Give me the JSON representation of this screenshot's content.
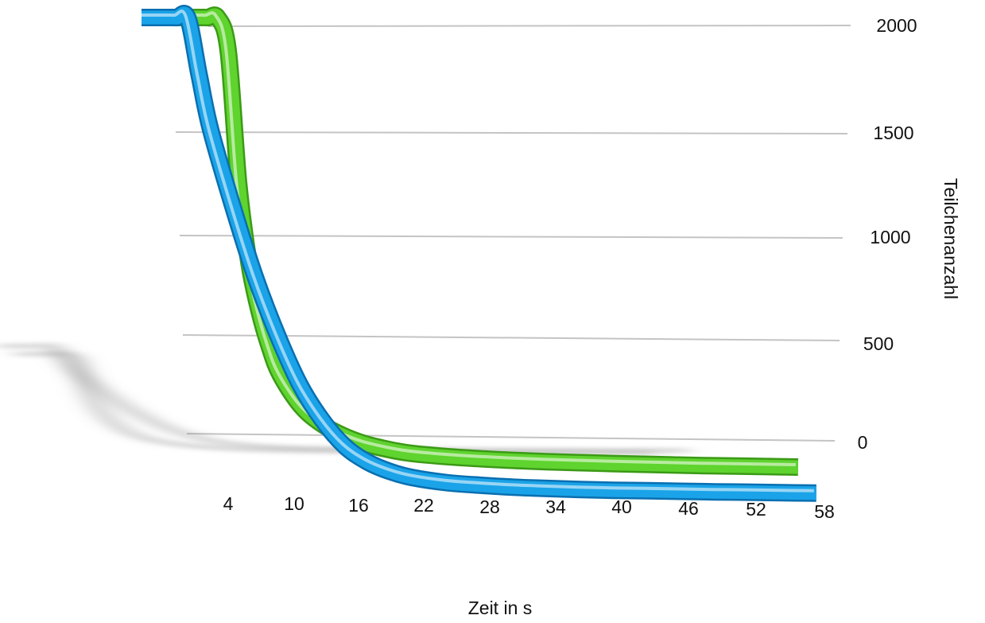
{
  "chart_data": {
    "type": "line",
    "title": "",
    "xlabel": "Zeit in s",
    "ylabel": "Teilchenanzahl",
    "x_ticks": [
      "4",
      "10",
      "16",
      "22",
      "28",
      "34",
      "40",
      "46",
      "52",
      "58"
    ],
    "y_ticks": [
      "2000",
      "1500",
      "1000",
      "500",
      "0"
    ],
    "ylim": [
      0,
      2000
    ],
    "xlim": [
      0,
      60
    ],
    "grid": true,
    "series": [
      {
        "color": "#5fd32e",
        "x": [
          0,
          1,
          2,
          3,
          4,
          5,
          6,
          7,
          8,
          10,
          12,
          14,
          16,
          18,
          20,
          22,
          25,
          28,
          31,
          34,
          37,
          40,
          43,
          46,
          49,
          52,
          55,
          58
        ],
        "values": [
          2000,
          2000,
          2000,
          1850,
          1260,
          900,
          680,
          520,
          400,
          260,
          180,
          130,
          95,
          72,
          55,
          45,
          35,
          28,
          22,
          18,
          15,
          12,
          10,
          8,
          6,
          5,
          4,
          3
        ]
      },
      {
        "color": "#1aa3e8",
        "x": [
          0,
          1,
          2,
          3,
          4,
          6,
          8,
          10,
          12,
          14,
          16,
          18,
          20,
          22,
          25,
          28,
          31,
          34,
          37,
          40,
          43,
          46,
          49,
          52,
          55,
          58
        ],
        "values": [
          2000,
          2000,
          2000,
          1760,
          1530,
          1200,
          900,
          650,
          440,
          290,
          180,
          115,
          75,
          50,
          30,
          20,
          13,
          9,
          6,
          4,
          3,
          2,
          1,
          1,
          0,
          0
        ]
      }
    ]
  }
}
